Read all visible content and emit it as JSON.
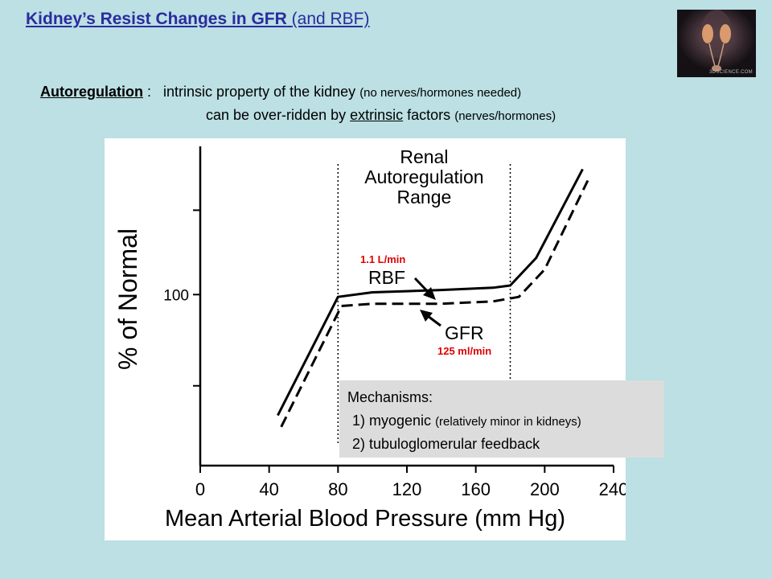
{
  "slide": {
    "title": "Kidney’s Resist Changes in GFR",
    "title_suffix": "(and RBF)",
    "autoreg_term": "Autoregulation",
    "autoreg_colon": ":",
    "autoreg_def": "intrinsic property of the kidney",
    "autoreg_note": "(no nerves/hormones needed)",
    "line2_prefix": "can be over-ridden by",
    "line2_term": "extrinsic",
    "line2_mid": "factors",
    "line2_note": "(nerves/hormones)",
    "thumbnail_watermark": "3DSCIENCE.COM"
  },
  "mechanisms": {
    "heading": "Mechanisms",
    "heading_colon": ":",
    "item1": "1) myogenic",
    "item1_note": "(relatively minor in kidneys)",
    "item2": "2) tubuloglomerular  feedback"
  },
  "chart_data": {
    "type": "line",
    "xlabel": "Mean Arterial Blood Pressure (mm Hg)",
    "ylabel": "% of Normal",
    "x_ticks": [
      0,
      40,
      80,
      120,
      160,
      200,
      240
    ],
    "y_ticks": [
      100
    ],
    "xlim": [
      0,
      240
    ],
    "ylim": [
      25,
      165
    ],
    "region": {
      "label_lines": [
        "Renal",
        "Autoregulation",
        "Range"
      ],
      "x_start": 80,
      "x_end": 180
    },
    "series": [
      {
        "name": "RBF",
        "style": "solid",
        "annotation": "1.1 L/min",
        "x": [
          45,
          80,
          100,
          140,
          170,
          180,
          195,
          222
        ],
        "y": [
          47,
          99,
          101,
          102,
          103,
          104,
          116,
          155
        ]
      },
      {
        "name": "GFR",
        "style": "dashed",
        "annotation": "125 ml/min",
        "x": [
          47,
          82,
          100,
          140,
          170,
          185,
          200,
          225
        ],
        "y": [
          42,
          95,
          96,
          96,
          97,
          99,
          111,
          150
        ]
      }
    ],
    "colors": {
      "curve": "#000000",
      "annotation": "#e00000",
      "axes": "#000000"
    }
  }
}
